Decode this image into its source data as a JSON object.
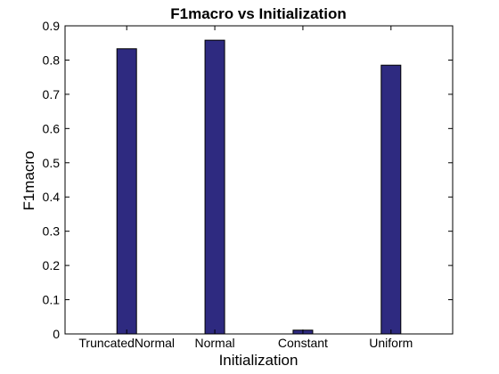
{
  "chart_data": {
    "type": "bar",
    "title": "F1macro vs Initialization",
    "xlabel": "Initialization",
    "ylabel": "F1macro",
    "categories": [
      "TruncatedNormal",
      "Normal",
      "Constant",
      "Uniform"
    ],
    "values": [
      0.833,
      0.858,
      0.011,
      0.785
    ],
    "ylim": [
      0,
      0.9
    ],
    "yticks": [
      0,
      0.1,
      0.2,
      0.3,
      0.4,
      0.5,
      0.6,
      0.7,
      0.8,
      0.9
    ],
    "ytick_labels": [
      "0",
      "0.1",
      "0.2",
      "0.3",
      "0.4",
      "0.5",
      "0.6",
      "0.7",
      "0.8",
      "0.9"
    ],
    "grid": false,
    "bar_color": "#2e2a80"
  }
}
